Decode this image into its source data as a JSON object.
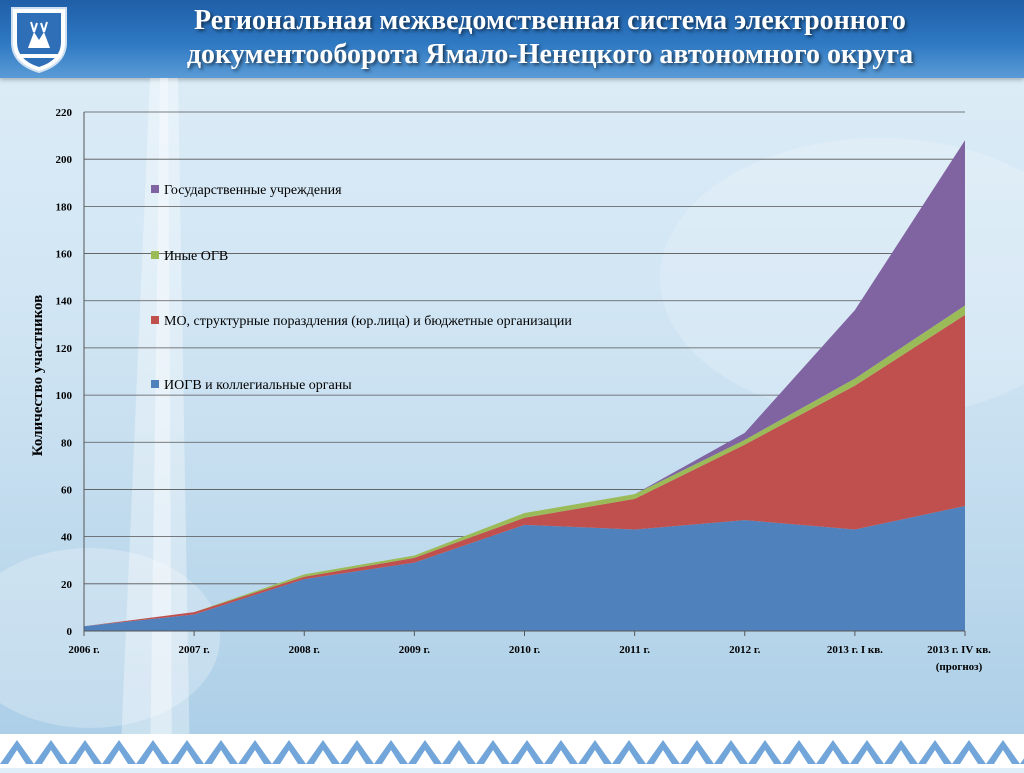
{
  "header": {
    "title_line1": "Региональная межведомственная система электронного",
    "title_line2": "документооборота Ямало-Ненецкого автономного округа"
  },
  "colors": {
    "header": "#2e78c2",
    "series": [
      "#4f81bd",
      "#c0504d",
      "#9bbb59",
      "#8064a2"
    ]
  },
  "chart_data": {
    "type": "area",
    "stacked": true,
    "title": "",
    "xlabel": "",
    "ylabel": "Количество участников",
    "ylim": [
      0,
      220
    ],
    "yticks": [
      0,
      20,
      40,
      60,
      80,
      100,
      120,
      140,
      160,
      180,
      200,
      220
    ],
    "grid": true,
    "legend_position": "upper-left",
    "categories": [
      "2006 г.",
      "2007 г.",
      "2008 г.",
      "2009 г.",
      "2010 г.",
      "2011 г.",
      "2012 г.",
      "2013 г. I кв.",
      "2013 г. IV кв. (прогноз)"
    ],
    "series": [
      {
        "name": "ИОГВ и коллегиальные органы",
        "values": [
          2,
          7,
          22,
          29,
          45,
          43,
          47,
          43,
          53
        ]
      },
      {
        "name": "МО, структурные пораздления (юр.лица) и бюджетные организации",
        "values": [
          0,
          1,
          1,
          2,
          3,
          13,
          32,
          61,
          81
        ]
      },
      {
        "name": "Иные ОГВ",
        "values": [
          0,
          0,
          1,
          1,
          2,
          2,
          2,
          3,
          4
        ]
      },
      {
        "name": "Государственные учреждения",
        "values": [
          0,
          0,
          0,
          0,
          0,
          0,
          3,
          29,
          70
        ]
      }
    ]
  }
}
